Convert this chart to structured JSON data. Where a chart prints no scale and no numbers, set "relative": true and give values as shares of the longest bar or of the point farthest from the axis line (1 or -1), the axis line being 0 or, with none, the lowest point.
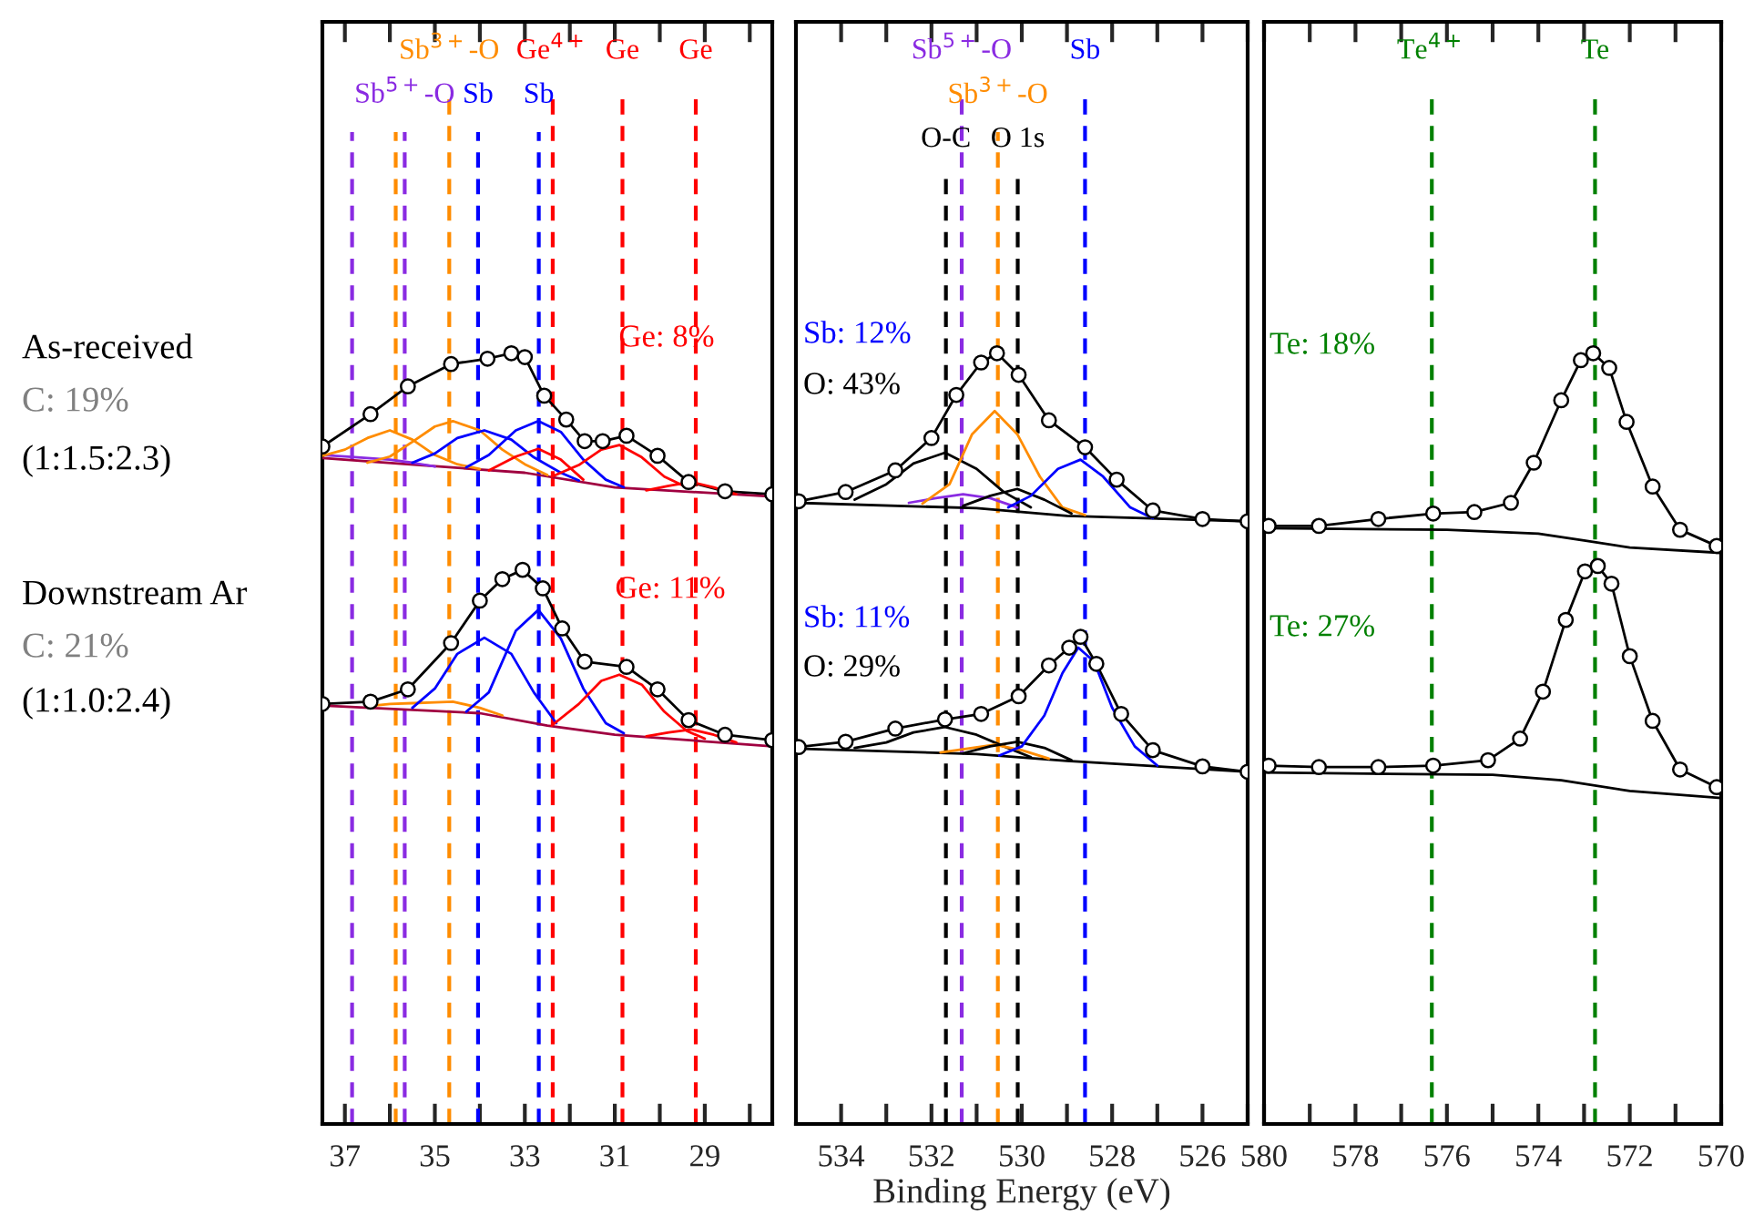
{
  "chart_data": [
    {
      "type": "line",
      "relative": true,
      "tick_labels": "x",
      "xlim": [
        37.5,
        27.5
      ],
      "xticks": [
        37,
        {
          "value": 36,
          "label": null
        },
        35,
        {
          "value": 34,
          "label": null
        },
        33,
        {
          "value": 32,
          "label": null
        },
        31,
        {
          "value": 30,
          "label": null
        },
        29,
        {
          "value": 28,
          "label": null
        }
      ],
      "series": [
        {
          "type": "scatter",
          "marker": "circle",
          "color": "#000000",
          "x": [
            37.5,
            36.43,
            35.6,
            34.64,
            33.83,
            33.3,
            33.0,
            32.57,
            32.08,
            31.67,
            31.27,
            30.74,
            30.05,
            29.36,
            28.55,
            27.5
          ],
          "values": [
            0.879,
            0.921,
            0.957,
            0.986,
            0.993,
            1.0,
            0.995,
            0.945,
            0.914,
            0.886,
            0.886,
            0.893,
            0.867,
            0.833,
            0.821,
            0.817
          ]
        },
        {
          "type": "line",
          "color": "#000000",
          "x": [
            37.5,
            36.43,
            35.6,
            34.64,
            33.83,
            33.3,
            33.0,
            32.57,
            32.08,
            31.67,
            31.27,
            30.74,
            30.05,
            29.36,
            28.55,
            27.5
          ],
          "values": [
            0.879,
            0.921,
            0.957,
            0.986,
            0.993,
            1.0,
            0.995,
            0.945,
            0.914,
            0.886,
            0.886,
            0.893,
            0.867,
            0.833,
            0.821,
            0.817
          ]
        },
        {
          "type": "line",
          "color": "#a00040",
          "x": [
            37.5,
            33,
            31,
            27.5
          ],
          "values": [
            0.864,
            0.845,
            0.826,
            0.814
          ]
        },
        {
          "type": "line",
          "color": "#8a2be2",
          "x": [
            37.5,
            37,
            36.5,
            36,
            35.5,
            35
          ],
          "values": [
            0.868,
            0.866,
            0.864,
            0.862,
            0.858,
            0.853
          ]
        },
        {
          "type": "line",
          "color": "#ff8c00",
          "x": [
            37.5,
            37,
            36.5,
            36,
            35.5,
            35,
            34.5,
            34
          ],
          "values": [
            0.867,
            0.875,
            0.89,
            0.9,
            0.888,
            0.868,
            0.856,
            0.85
          ]
        },
        {
          "type": "line",
          "color": "#ff8c00",
          "x": [
            36.5,
            36,
            35.5,
            35,
            34.6,
            34,
            33.5,
            33,
            32.5
          ],
          "values": [
            0.858,
            0.866,
            0.885,
            0.905,
            0.912,
            0.9,
            0.875,
            0.856,
            0.842
          ]
        },
        {
          "type": "line",
          "color": "#0000ff",
          "x": [
            35.5,
            35,
            34.5,
            33.9,
            33.3,
            32.8,
            32.2,
            31.8
          ],
          "values": [
            0.858,
            0.87,
            0.89,
            0.9,
            0.888,
            0.865,
            0.845,
            0.835
          ]
        },
        {
          "type": "line",
          "color": "#0000ff",
          "x": [
            34.3,
            33.8,
            33.2,
            32.7,
            32.2,
            31.7,
            31.2,
            30.8
          ],
          "values": [
            0.852,
            0.868,
            0.9,
            0.912,
            0.898,
            0.862,
            0.836,
            0.826
          ]
        },
        {
          "type": "line",
          "color": "#ff0000",
          "x": [
            33.8,
            33.2,
            32.7,
            32.2,
            31.7
          ],
          "values": [
            0.848,
            0.866,
            0.876,
            0.862,
            0.836
          ]
        },
        {
          "type": "line",
          "color": "#ff0000",
          "x": [
            32.4,
            31.8,
            31.3,
            30.9,
            30.4,
            29.9,
            29.4
          ],
          "values": [
            0.84,
            0.855,
            0.875,
            0.881,
            0.865,
            0.84,
            0.826
          ]
        },
        {
          "type": "line",
          "color": "#ff0000",
          "x": [
            30.3,
            29.8,
            29.3,
            28.8,
            28.3
          ],
          "values": [
            0.822,
            0.828,
            0.833,
            0.826,
            0.817
          ]
        },
        {
          "type": "scatter",
          "marker": "circle",
          "color": "#000000",
          "x": [
            37.5,
            36.43,
            35.6,
            34.64,
            34.0,
            33.5,
            33.05,
            32.6,
            32.17,
            31.67,
            30.74,
            30.05,
            29.36,
            28.55,
            27.5
          ],
          "values": [
            0.545,
            0.548,
            0.564,
            0.624,
            0.679,
            0.707,
            0.719,
            0.695,
            0.643,
            0.6,
            0.593,
            0.564,
            0.524,
            0.505,
            0.498
          ]
        },
        {
          "type": "line",
          "color": "#000000",
          "x": [
            37.5,
            36.43,
            35.6,
            34.64,
            34.0,
            33.5,
            33.05,
            32.6,
            32.17,
            31.67,
            30.74,
            30.05,
            29.36,
            28.55,
            27.5
          ],
          "values": [
            0.545,
            0.548,
            0.564,
            0.624,
            0.679,
            0.707,
            0.719,
            0.695,
            0.643,
            0.6,
            0.593,
            0.564,
            0.524,
            0.505,
            0.498
          ]
        },
        {
          "type": "line",
          "color": "#a00040",
          "x": [
            37.5,
            34,
            32.5,
            31,
            27.5
          ],
          "values": [
            0.543,
            0.533,
            0.517,
            0.505,
            0.49
          ]
        },
        {
          "type": "line",
          "color": "#ff8c00",
          "x": [
            36.5,
            36,
            35.5,
            35,
            34.6,
            34,
            33.5
          ],
          "values": [
            0.542,
            0.545,
            0.546,
            0.547,
            0.548,
            0.54,
            0.53
          ]
        },
        {
          "type": "line",
          "color": "#0000ff",
          "x": [
            35.5,
            35,
            34.5,
            33.9,
            33.3,
            32.8,
            32.3
          ],
          "values": [
            0.54,
            0.565,
            0.61,
            0.631,
            0.61,
            0.56,
            0.52
          ]
        },
        {
          "type": "line",
          "color": "#0000ff",
          "x": [
            34.3,
            33.8,
            33.2,
            32.7,
            32.2,
            31.7,
            31.2,
            30.8
          ],
          "values": [
            0.535,
            0.56,
            0.64,
            0.667,
            0.63,
            0.565,
            0.52,
            0.507
          ]
        },
        {
          "type": "line",
          "color": "#ff0000",
          "x": [
            32.4,
            31.8,
            31.3,
            30.9,
            30.4,
            29.9,
            29.4,
            29
          ],
          "values": [
            0.517,
            0.545,
            0.575,
            0.583,
            0.57,
            0.535,
            0.51,
            0.5
          ]
        },
        {
          "type": "line",
          "color": "#ff0000",
          "x": [
            30.3,
            29.8,
            29.3,
            28.8,
            28.3
          ],
          "values": [
            0.503,
            0.508,
            0.512,
            0.505,
            0.495
          ]
        }
      ],
      "ref_lines": [
        {
          "axis": "x",
          "value": 34.68,
          "label": "Sb$^{3+}$-O",
          "color": "#ff8c00",
          "line_style": "dashed"
        },
        {
          "axis": "x",
          "value": 32.38,
          "label": "Ge$^{4+}$",
          "color": "#ff0000",
          "line_style": "dashed"
        },
        {
          "axis": "x",
          "value": 35.67,
          "label": "Sb$^{5+}$-O",
          "color": "#8a2be2",
          "line_style": "dashed"
        },
        {
          "axis": "x",
          "value": 34.04,
          "label": "Sb",
          "color": "#0000ff",
          "line_style": "dashed"
        },
        {
          "axis": "x",
          "value": 32.69,
          "label": "Sb",
          "color": "#0000ff",
          "line_style": "dashed"
        },
        {
          "axis": "x",
          "value": 30.83,
          "label": "Ge",
          "color": "#ff0000",
          "line_style": "dashed"
        },
        {
          "axis": "x",
          "value": 29.2,
          "label": "Ge",
          "color": "#ff0000",
          "line_style": "dashed"
        },
        {
          "axis": "x",
          "value": 36.84,
          "color": "#8a2be2",
          "line_style": "dashed"
        },
        {
          "axis": "x",
          "value": 35.87,
          "color": "#ff8c00",
          "line_style": "dashed"
        }
      ],
      "annotations": [
        "As-received",
        "C: 19%",
        "(1:1.5:2.3)",
        "Downstream Ar",
        "C: 21%",
        "(1:1.0:2.4)",
        "Ge: 8%",
        "Ge: 11%"
      ]
    },
    {
      "type": "line",
      "relative": true,
      "tick_labels": "x",
      "xlabel": "Binding Energy (eV)",
      "xlim": [
        535,
        525
      ],
      "xticks": [
        534,
        {
          "value": 533,
          "label": null
        },
        532,
        {
          "value": 531,
          "label": null
        },
        530,
        {
          "value": 529,
          "label": null
        },
        528,
        {
          "value": 527,
          "label": null
        },
        526,
        {
          "value": 525,
          "label": null
        }
      ],
      "series": [
        {
          "type": "scatter",
          "marker": "circle",
          "color": "#000000",
          "x": [
            534.94,
            533.9,
            532.8,
            532.0,
            531.45,
            530.9,
            530.55,
            530.07,
            529.4,
            528.6,
            527.9,
            527.1,
            526.0,
            525.0
          ],
          "values": [
            0.808,
            0.82,
            0.848,
            0.89,
            0.946,
            0.988,
            1.0,
            0.972,
            0.913,
            0.878,
            0.836,
            0.796,
            0.785,
            0.782
          ]
        },
        {
          "type": "line",
          "color": "#000000",
          "x": [
            534.94,
            533.9,
            532.8,
            532.0,
            531.45,
            530.9,
            530.55,
            530.07,
            529.4,
            528.6,
            527.9,
            527.1,
            526.0,
            525.0
          ],
          "values": [
            0.808,
            0.82,
            0.848,
            0.89,
            0.946,
            0.988,
            1.0,
            0.972,
            0.913,
            0.878,
            0.836,
            0.796,
            0.785,
            0.782
          ]
        },
        {
          "type": "line",
          "color": "#000000",
          "x": [
            535,
            531,
            529,
            525
          ],
          "values": [
            0.806,
            0.799,
            0.789,
            0.782
          ]
        },
        {
          "type": "line",
          "color": "#000000",
          "x": [
            533.7,
            533,
            532.4,
            531.7,
            531,
            530.4,
            529.8
          ],
          "values": [
            0.81,
            0.83,
            0.857,
            0.871,
            0.85,
            0.82,
            0.8
          ]
        },
        {
          "type": "line",
          "color": "#8a2be2",
          "x": [
            532.5,
            531.9,
            531.3,
            530.7,
            530.1
          ],
          "values": [
            0.806,
            0.812,
            0.817,
            0.812,
            0.8
          ]
        },
        {
          "type": "line",
          "color": "#ff8c00",
          "x": [
            532.2,
            531.6,
            531.1,
            530.6,
            530.1,
            529.6,
            529.1,
            528.6
          ],
          "values": [
            0.805,
            0.83,
            0.895,
            0.925,
            0.895,
            0.84,
            0.8,
            0.79
          ]
        },
        {
          "type": "line",
          "color": "#000000",
          "x": [
            531.3,
            530.7,
            530.1,
            529.5,
            528.9
          ],
          "values": [
            0.802,
            0.815,
            0.824,
            0.81,
            0.792
          ]
        },
        {
          "type": "line",
          "color": "#0000ff",
          "x": [
            530.3,
            529.8,
            529.2,
            528.7,
            528.2,
            527.6,
            527.1
          ],
          "values": [
            0.8,
            0.815,
            0.85,
            0.862,
            0.84,
            0.8,
            0.786
          ]
        },
        {
          "type": "scatter",
          "marker": "circle",
          "color": "#000000",
          "x": [
            534.94,
            533.9,
            532.8,
            531.7,
            530.9,
            530.07,
            529.4,
            528.95,
            528.7,
            528.35,
            527.8,
            527.1,
            526.0,
            525.0
          ],
          "values": [
            0.489,
            0.496,
            0.513,
            0.525,
            0.532,
            0.555,
            0.595,
            0.618,
            0.632,
            0.597,
            0.532,
            0.485,
            0.464,
            0.457
          ]
        },
        {
          "type": "line",
          "color": "#000000",
          "x": [
            534.94,
            533.9,
            532.8,
            531.7,
            530.9,
            530.07,
            529.4,
            528.95,
            528.7,
            528.35,
            527.8,
            527.1,
            526.0,
            525.0
          ],
          "values": [
            0.489,
            0.496,
            0.513,
            0.525,
            0.532,
            0.555,
            0.595,
            0.618,
            0.632,
            0.597,
            0.532,
            0.485,
            0.464,
            0.457
          ]
        },
        {
          "type": "line",
          "color": "#000000",
          "x": [
            535,
            531,
            529,
            525
          ],
          "values": [
            0.487,
            0.48,
            0.471,
            0.457
          ]
        },
        {
          "type": "line",
          "color": "#000000",
          "x": [
            533.7,
            533,
            532.4,
            531.7,
            531,
            530.4,
            529.8
          ],
          "values": [
            0.488,
            0.495,
            0.508,
            0.515,
            0.505,
            0.49,
            0.476
          ]
        },
        {
          "type": "line",
          "color": "#ff8c00",
          "x": [
            531.8,
            531.2,
            530.6,
            530,
            529.4
          ],
          "values": [
            0.482,
            0.487,
            0.492,
            0.485,
            0.474
          ]
        },
        {
          "type": "line",
          "color": "#000000",
          "x": [
            531.3,
            530.7,
            530.1,
            529.5,
            528.9
          ],
          "values": [
            0.481,
            0.49,
            0.496,
            0.488,
            0.472
          ]
        },
        {
          "type": "line",
          "color": "#0000ff",
          "x": [
            530.5,
            530,
            529.5,
            529.1,
            528.75,
            528.4,
            528,
            527.5,
            527
          ],
          "values": [
            0.478,
            0.49,
            0.53,
            0.585,
            0.618,
            0.6,
            0.54,
            0.49,
            0.465
          ]
        }
      ],
      "ref_lines": [
        {
          "axis": "x",
          "value": 531.33,
          "label": "Sb$^{5+}$-O",
          "color": "#8a2be2",
          "line_style": "dashed"
        },
        {
          "axis": "x",
          "value": 530.53,
          "label": "Sb$^{3+}$-O",
          "color": "#ff8c00",
          "line_style": "dashed"
        },
        {
          "axis": "x",
          "value": 528.6,
          "label": "Sb",
          "color": "#0000ff",
          "line_style": "dashed"
        },
        {
          "axis": "x",
          "value": 531.68,
          "label": "O-C",
          "color": "#000000",
          "line_style": "dashed"
        },
        {
          "axis": "x",
          "value": 530.09,
          "label": "O 1s",
          "color": "#000000",
          "line_style": "dashed"
        }
      ],
      "annotations": [
        "Sb: 12%",
        "O: 43%",
        "Sb: 11%",
        "O: 29%"
      ]
    },
    {
      "type": "line",
      "relative": true,
      "tick_labels": "x",
      "xlim": [
        580,
        570
      ],
      "xticks": [
        580,
        {
          "value": 579,
          "label": null
        },
        578,
        {
          "value": 577,
          "label": null
        },
        576,
        {
          "value": 575,
          "label": null
        },
        574,
        {
          "value": 573,
          "label": null
        },
        572,
        {
          "value": 571,
          "label": null
        },
        570
      ],
      "series": [
        {
          "type": "scatter",
          "marker": "circle",
          "color": "#000000",
          "x": [
            579.9,
            578.8,
            577.5,
            576.3,
            575.4,
            574.6,
            574.1,
            573.5,
            573.07,
            572.8,
            572.45,
            572.07,
            571.5,
            570.9,
            570.1
          ],
          "values": [
            0.776,
            0.776,
            0.785,
            0.792,
            0.794,
            0.806,
            0.858,
            0.939,
            0.991,
            1.0,
            0.981,
            0.911,
            0.827,
            0.771,
            0.75
          ]
        },
        {
          "type": "line",
          "color": "#000000",
          "x": [
            579.9,
            578.8,
            577.5,
            576.3,
            575.4,
            574.6,
            574.1,
            573.5,
            573.07,
            572.8,
            572.45,
            572.07,
            571.5,
            570.9,
            570.1
          ],
          "values": [
            0.776,
            0.776,
            0.785,
            0.792,
            0.794,
            0.806,
            0.858,
            0.939,
            0.991,
            1.0,
            0.981,
            0.911,
            0.827,
            0.771,
            0.75
          ]
        },
        {
          "type": "line",
          "color": "#000000",
          "x": [
            580,
            576,
            574,
            573,
            572,
            570
          ],
          "values": [
            0.773,
            0.771,
            0.766,
            0.757,
            0.748,
            0.741
          ]
        },
        {
          "type": "scatter",
          "marker": "circle",
          "color": "#000000",
          "x": [
            579.9,
            578.8,
            577.5,
            576.3,
            575.1,
            574.4,
            573.9,
            573.4,
            572.98,
            572.7,
            572.4,
            572.0,
            571.5,
            570.9,
            570.1
          ],
          "values": [
            0.465,
            0.463,
            0.463,
            0.465,
            0.472,
            0.5,
            0.561,
            0.654,
            0.717,
            0.724,
            0.701,
            0.607,
            0.523,
            0.46,
            0.437
          ]
        },
        {
          "type": "line",
          "color": "#000000",
          "x": [
            579.9,
            578.8,
            577.5,
            576.3,
            575.1,
            574.4,
            573.9,
            573.4,
            572.98,
            572.7,
            572.4,
            572.0,
            571.5,
            570.9,
            570.1
          ],
          "values": [
            0.465,
            0.463,
            0.463,
            0.465,
            0.472,
            0.5,
            0.561,
            0.654,
            0.717,
            0.724,
            0.701,
            0.607,
            0.523,
            0.46,
            0.437
          ]
        },
        {
          "type": "line",
          "color": "#000000",
          "x": [
            580,
            575,
            573.5,
            572,
            570
          ],
          "values": [
            0.456,
            0.453,
            0.446,
            0.432,
            0.423
          ]
        }
      ],
      "ref_lines": [
        {
          "axis": "x",
          "value": 576.33,
          "label": "Te$^{4+}$",
          "color": "#008000",
          "line_style": "dashed"
        },
        {
          "axis": "x",
          "value": 572.76,
          "label": "Te",
          "color": "#008000",
          "line_style": "dashed"
        }
      ],
      "annotations": [
        "Te: 18%",
        "Te: 27%"
      ]
    }
  ]
}
